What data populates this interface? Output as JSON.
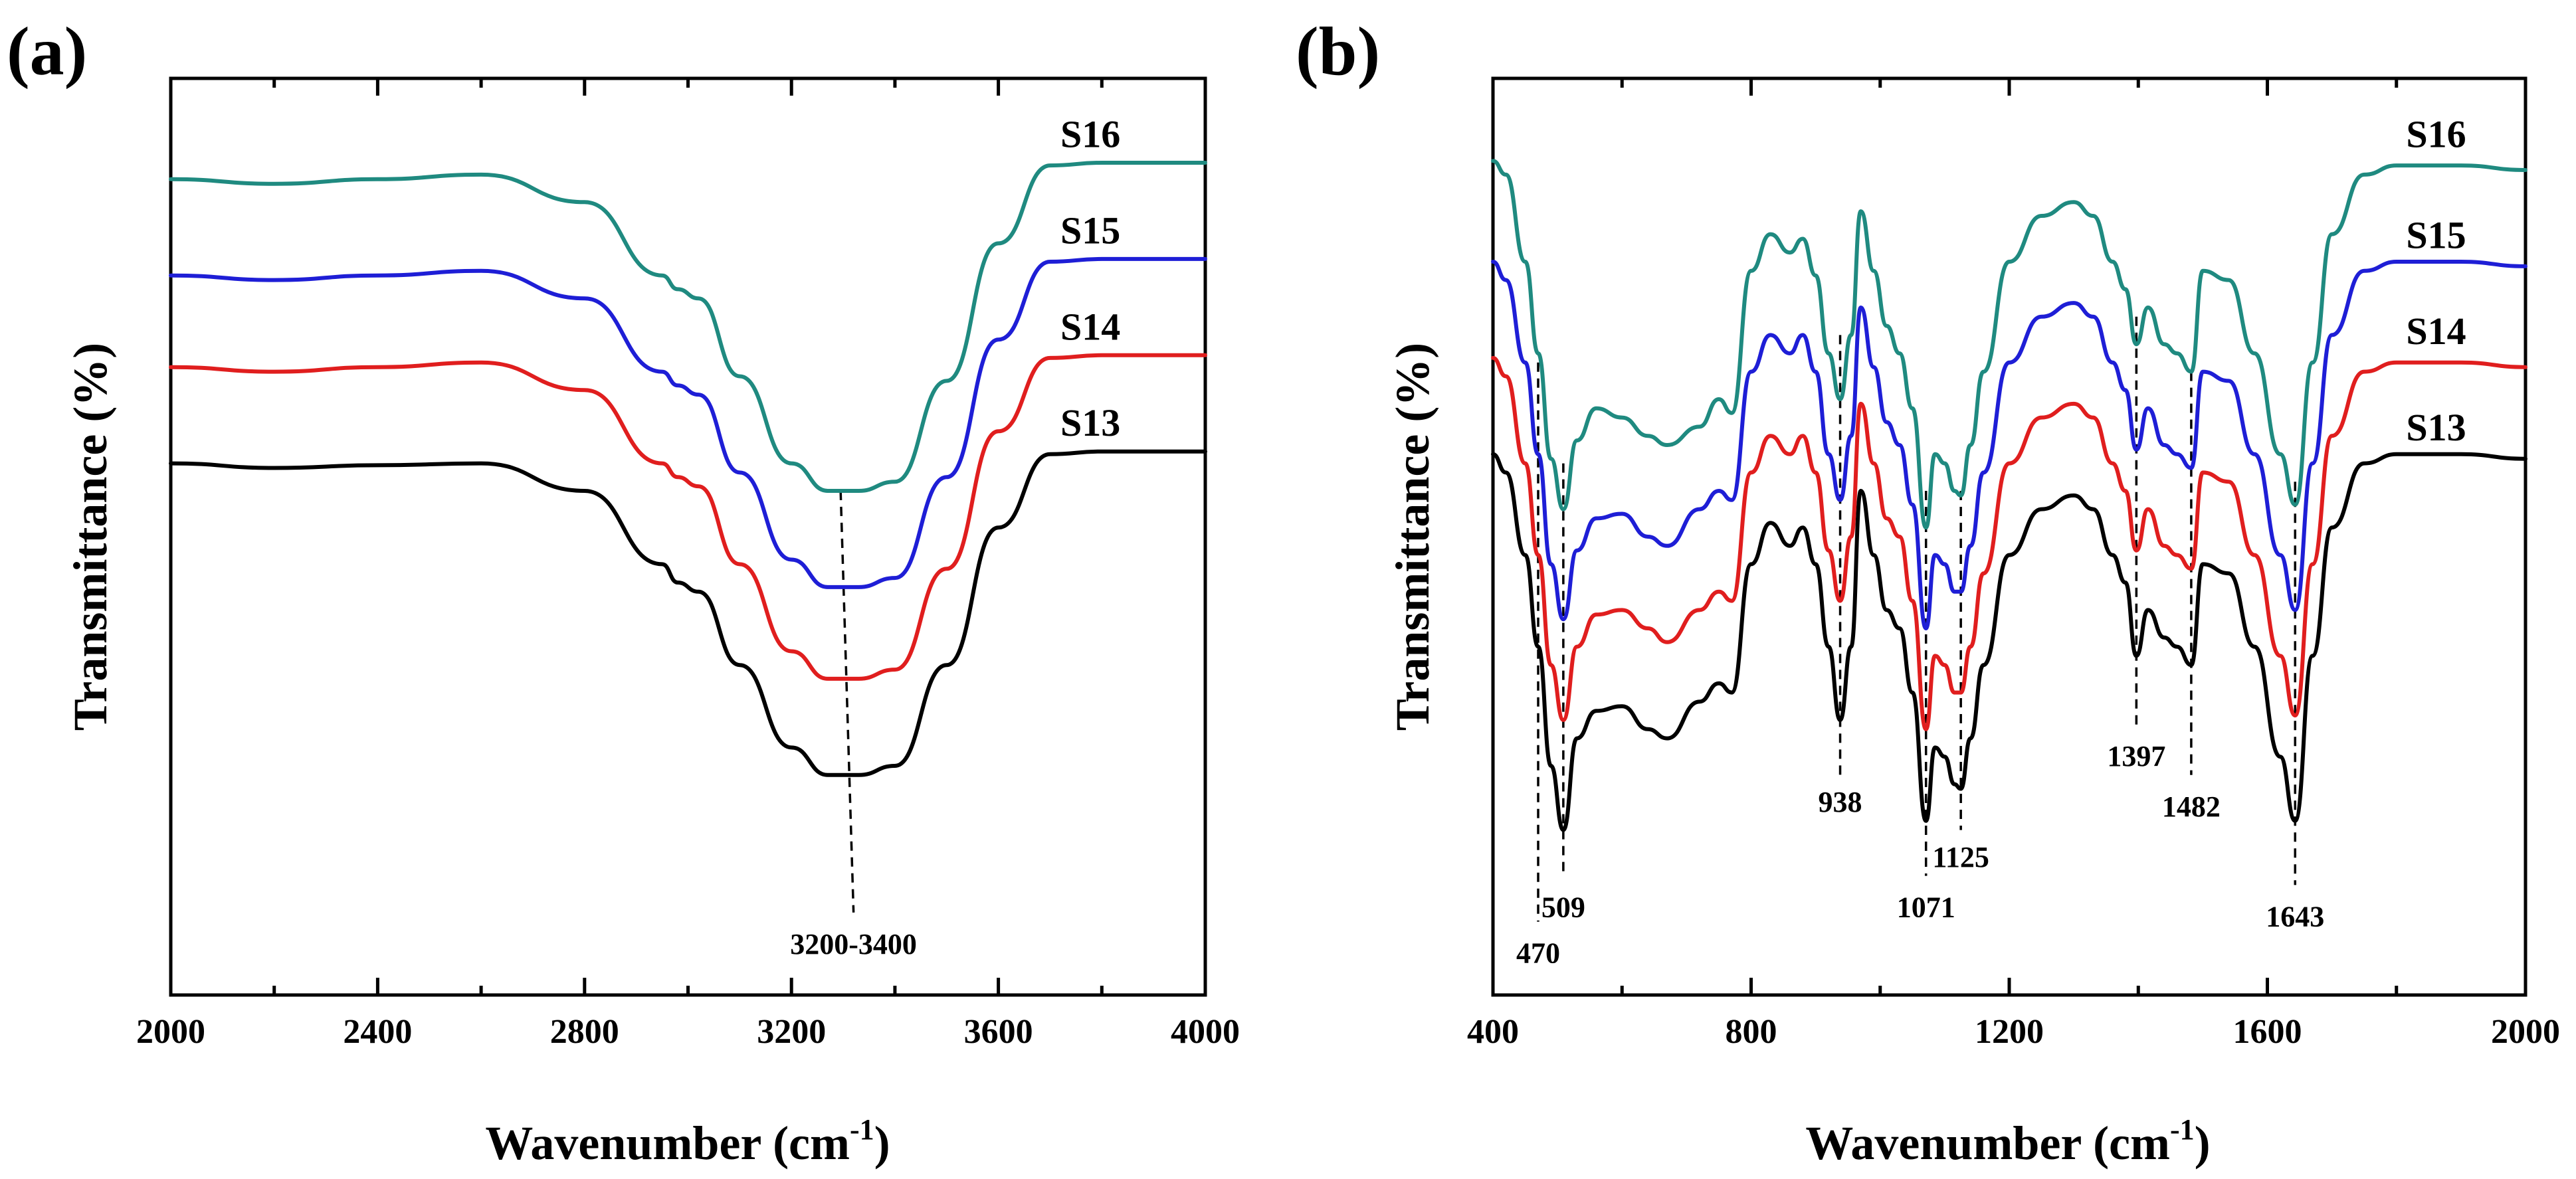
{
  "figure_labels": {
    "a": "(a)",
    "b": "(b)"
  },
  "colors": {
    "S13": "#000000",
    "S14": "#e01e1e",
    "S15": "#1e1ed6",
    "S16": "#1f8a80"
  },
  "chart_data": [
    {
      "id": "a",
      "type": "line",
      "xlabel": "Wavenumber (cm",
      "xlabel_sup": "-1",
      "xlabel_close": ")",
      "ylabel": "Transmittance (%)",
      "xlim": [
        2000,
        4000
      ],
      "xticks": [
        2000,
        2400,
        2800,
        3200,
        3600,
        4000
      ],
      "xtick_labels": [
        "2000",
        "2400",
        "2800",
        "3200",
        "3600",
        "4000"
      ],
      "ylim": [
        0,
        100
      ],
      "series": [
        {
          "name": "S13",
          "color": "#000000",
          "baseline": 28,
          "plateau": 30,
          "x": [
            2000,
            2200,
            2400,
            2600,
            2800,
            2950,
            2980,
            3020,
            3100,
            3200,
            3270,
            3330,
            3400,
            3500,
            3600,
            3700,
            3800,
            4000
          ],
          "y": [
            58.0,
            57.5,
            57.8,
            58.0,
            55.0,
            47.0,
            45.0,
            44.0,
            36.0,
            27.0,
            24.0,
            24.0,
            25.0,
            36.0,
            51.0,
            59.0,
            59.3,
            59.3
          ]
        },
        {
          "name": "S14",
          "color": "#e01e1e",
          "x": [
            2000,
            2200,
            2400,
            2600,
            2800,
            2950,
            2980,
            3020,
            3100,
            3200,
            3270,
            3330,
            3400,
            3500,
            3600,
            3700,
            3800,
            4000
          ],
          "y": [
            68.5,
            68.0,
            68.5,
            69.0,
            66.0,
            58.0,
            56.5,
            55.5,
            47.0,
            37.5,
            34.5,
            34.5,
            35.5,
            46.5,
            61.5,
            69.5,
            69.8,
            69.8
          ]
        },
        {
          "name": "S15",
          "color": "#1e1ed6",
          "x": [
            2000,
            2200,
            2400,
            2600,
            2800,
            2950,
            2980,
            3020,
            3100,
            3200,
            3270,
            3330,
            3400,
            3500,
            3600,
            3700,
            3800,
            4000
          ],
          "y": [
            78.5,
            78.0,
            78.5,
            79.0,
            76.0,
            68.0,
            66.5,
            65.5,
            57.0,
            47.5,
            44.5,
            44.5,
            45.5,
            56.5,
            71.5,
            80.0,
            80.3,
            80.3
          ]
        },
        {
          "name": "S16",
          "color": "#1f8a80",
          "x": [
            2000,
            2200,
            2400,
            2600,
            2800,
            2950,
            2980,
            3020,
            3100,
            3200,
            3270,
            3330,
            3400,
            3500,
            3600,
            3700,
            3800,
            4000
          ],
          "y": [
            89.0,
            88.5,
            89.0,
            89.5,
            86.5,
            78.5,
            77.0,
            76.0,
            67.5,
            58.0,
            55.0,
            55.0,
            56.0,
            67.0,
            82.0,
            90.5,
            90.8,
            90.8
          ]
        }
      ],
      "series_label_positions": [
        {
          "name": "S16",
          "x": 3720,
          "y": 92.5
        },
        {
          "name": "S15",
          "x": 3720,
          "y": 82.0
        },
        {
          "name": "S14",
          "x": 3720,
          "y": 71.5
        },
        {
          "name": "S13",
          "x": 3720,
          "y": 61.0
        }
      ],
      "annotations": [
        {
          "label": "3200-3400",
          "x_top": 3295,
          "x_bottom": 3320,
          "y_top": 55.0,
          "y_bottom": 9.0,
          "label_y": 4.5
        }
      ]
    },
    {
      "id": "b",
      "type": "line",
      "xlabel": "Wavenumber (cm",
      "xlabel_sup": "-1",
      "xlabel_close": ")",
      "ylabel": "Transmittance (%)",
      "xlim": [
        400,
        2000
      ],
      "xticks": [
        400,
        800,
        1200,
        1600,
        2000
      ],
      "xtick_labels": [
        "400",
        "800",
        "1200",
        "1600",
        "2000"
      ],
      "ylim": [
        0,
        100
      ],
      "series": [
        {
          "name": "S13",
          "color": "#000000",
          "x": [
            400,
            420,
            450,
            470,
            490,
            509,
            530,
            560,
            600,
            640,
            670,
            720,
            750,
            770,
            800,
            830,
            860,
            880,
            900,
            920,
            938,
            955,
            970,
            990,
            1010,
            1030,
            1050,
            1071,
            1085,
            1100,
            1115,
            1125,
            1140,
            1160,
            1200,
            1250,
            1300,
            1330,
            1360,
            1380,
            1397,
            1415,
            1440,
            1460,
            1482,
            1500,
            1540,
            1580,
            1620,
            1643,
            1670,
            1700,
            1750,
            1800,
            1900,
            2000
          ],
          "y": [
            59.0,
            57.0,
            48.0,
            38.0,
            25.0,
            18.0,
            28.0,
            31.0,
            31.5,
            29.0,
            28.0,
            32.0,
            34.0,
            33.0,
            47.0,
            51.5,
            49.0,
            51.0,
            47.0,
            38.0,
            30.0,
            38.0,
            55.0,
            48.0,
            42.0,
            40.0,
            33.0,
            19.0,
            27.0,
            26.0,
            23.0,
            22.5,
            28.0,
            36.0,
            48.0,
            53.0,
            54.5,
            53.0,
            48.0,
            45.0,
            37.0,
            42.0,
            39.0,
            38.0,
            36.0,
            47.0,
            46.0,
            38.0,
            26.0,
            19.0,
            37.0,
            51.0,
            58.0,
            59.0,
            59.0,
            58.5
          ]
        },
        {
          "name": "S14",
          "color": "#e01e1e",
          "x": [
            400,
            420,
            450,
            470,
            490,
            509,
            530,
            560,
            600,
            640,
            670,
            720,
            750,
            770,
            800,
            830,
            860,
            880,
            900,
            920,
            938,
            955,
            970,
            990,
            1010,
            1030,
            1050,
            1071,
            1085,
            1100,
            1115,
            1125,
            1140,
            1160,
            1200,
            1250,
            1300,
            1330,
            1360,
            1380,
            1397,
            1415,
            1440,
            1460,
            1482,
            1500,
            1540,
            1580,
            1620,
            1643,
            1670,
            1700,
            1750,
            1800,
            1900,
            2000
          ],
          "y": [
            69.5,
            67.5,
            58.0,
            48.0,
            36.0,
            30.0,
            38.0,
            41.5,
            42.0,
            40.0,
            38.5,
            42.0,
            44.0,
            43.0,
            57.0,
            61.0,
            59.0,
            61.0,
            57.0,
            48.5,
            43.0,
            50.0,
            64.5,
            58.0,
            52.0,
            50.0,
            43.0,
            29.0,
            37.0,
            36.0,
            33.0,
            33.0,
            38.0,
            46.0,
            58.0,
            63.0,
            64.5,
            63.0,
            58.0,
            55.0,
            48.5,
            53.0,
            49.0,
            48.0,
            46.5,
            57.0,
            56.0,
            48.0,
            37.0,
            30.5,
            47.0,
            61.0,
            68.0,
            69.0,
            69.0,
            68.5
          ]
        },
        {
          "name": "S15",
          "color": "#1e1ed6",
          "x": [
            400,
            420,
            450,
            470,
            490,
            509,
            530,
            560,
            600,
            640,
            670,
            720,
            750,
            770,
            800,
            830,
            860,
            880,
            900,
            920,
            938,
            955,
            970,
            990,
            1010,
            1030,
            1050,
            1071,
            1085,
            1100,
            1115,
            1125,
            1140,
            1160,
            1200,
            1250,
            1300,
            1330,
            1360,
            1380,
            1397,
            1415,
            1440,
            1460,
            1482,
            1500,
            1540,
            1580,
            1620,
            1643,
            1670,
            1700,
            1750,
            1800,
            1900,
            2000
          ],
          "y": [
            80.0,
            78.0,
            69.0,
            59.0,
            47.0,
            41.0,
            48.5,
            52.0,
            52.5,
            50.0,
            49.0,
            53.0,
            55.0,
            54.0,
            68.0,
            72.0,
            70.0,
            72.0,
            68.0,
            59.0,
            54.0,
            61.0,
            75.0,
            68.5,
            62.5,
            60.0,
            53.5,
            40.0,
            48.0,
            47.0,
            44.0,
            44.0,
            49.0,
            57.0,
            69.0,
            74.0,
            75.5,
            74.0,
            69.0,
            66.0,
            59.5,
            64.0,
            60.0,
            59.0,
            57.5,
            68.0,
            67.0,
            59.0,
            48.0,
            42.0,
            58.0,
            72.0,
            79.0,
            80.0,
            80.0,
            79.5
          ]
        },
        {
          "name": "S16",
          "color": "#1f8a80",
          "x": [
            400,
            420,
            450,
            470,
            490,
            509,
            530,
            560,
            600,
            640,
            670,
            720,
            750,
            770,
            800,
            830,
            860,
            880,
            900,
            920,
            938,
            955,
            970,
            990,
            1010,
            1030,
            1050,
            1071,
            1085,
            1100,
            1115,
            1125,
            1140,
            1160,
            1200,
            1250,
            1300,
            1330,
            1360,
            1380,
            1397,
            1415,
            1440,
            1460,
            1482,
            1500,
            1540,
            1580,
            1620,
            1643,
            1670,
            1700,
            1750,
            1800,
            1900,
            2000
          ],
          "y": [
            91.0,
            89.5,
            80.0,
            70.0,
            58.5,
            53.0,
            60.5,
            64.0,
            63.0,
            61.0,
            60.0,
            62.0,
            65.0,
            63.5,
            79.0,
            83.0,
            81.0,
            82.5,
            78.5,
            70.0,
            65.0,
            72.0,
            85.5,
            79.0,
            73.0,
            70.0,
            64.0,
            51.0,
            59.0,
            58.0,
            55.0,
            54.5,
            60.0,
            68.0,
            80.0,
            85.0,
            86.5,
            85.0,
            80.0,
            77.0,
            71.0,
            75.0,
            71.0,
            70.0,
            68.0,
            79.0,
            78.0,
            70.0,
            59.0,
            53.5,
            69.0,
            83.0,
            89.5,
            90.5,
            90.5,
            90.0
          ]
        }
      ],
      "series_label_positions": [
        {
          "name": "S16",
          "x": 1815,
          "y": 92.5
        },
        {
          "name": "S15",
          "x": 1815,
          "y": 81.5
        },
        {
          "name": "S14",
          "x": 1815,
          "y": 71.0
        },
        {
          "name": "S13",
          "x": 1815,
          "y": 60.5
        }
      ],
      "annotations": [
        {
          "label": "470",
          "x": 470,
          "y_top": 69.0,
          "y_bottom": 8.0,
          "label_y": 3.5
        },
        {
          "label": "509",
          "x": 509,
          "y_top": 58.0,
          "y_bottom": 13.0,
          "label_y": 8.5
        },
        {
          "label": "938",
          "x": 938,
          "y_top": 72.0,
          "y_bottom": 24.0,
          "label_y": 20.0
        },
        {
          "label": "1071",
          "x": 1071,
          "y_top": 55.0,
          "y_bottom": 13.0,
          "label_y": 8.5
        },
        {
          "label": "1125",
          "x": 1125,
          "y_top": 55.0,
          "y_bottom": 18.0,
          "label_y": 14.0
        },
        {
          "label": "1397",
          "x": 1397,
          "y_top": 74.0,
          "y_bottom": 29.0,
          "label_y": 25.0
        },
        {
          "label": "1482",
          "x": 1482,
          "y_top": 68.0,
          "y_bottom": 24.0,
          "label_y": 19.5
        },
        {
          "label": "1643",
          "x": 1643,
          "y_top": 56.0,
          "y_bottom": 12.0,
          "label_y": 7.5
        }
      ]
    }
  ]
}
